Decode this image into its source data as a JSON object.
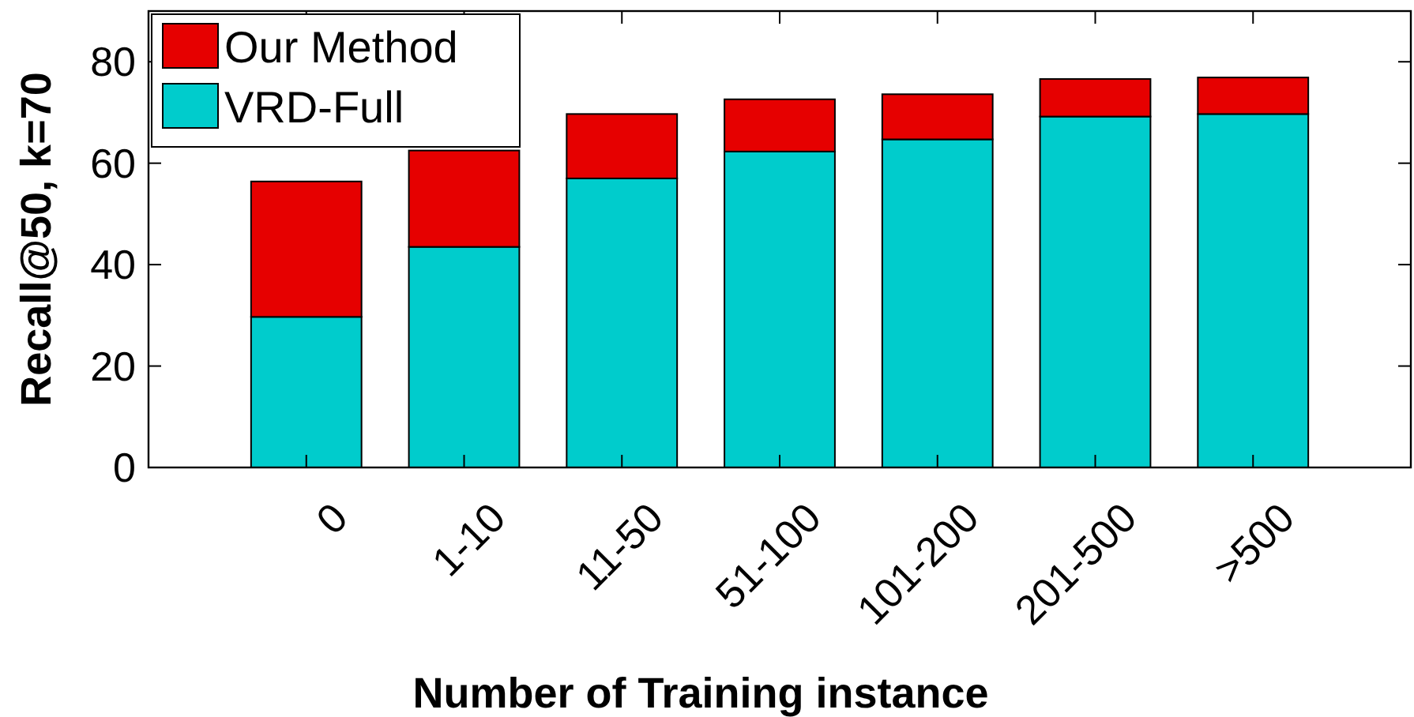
{
  "chart_data": {
    "type": "bar",
    "stacked": true,
    "xlabel": "Number of Training instance",
    "ylabel": "Recall@50, k=70",
    "categories": [
      "0",
      "1-10",
      "11-50",
      "51-100",
      "101-200",
      "201-500",
      ">500"
    ],
    "series": [
      {
        "name": "VRD-Full",
        "color": "#00cccc",
        "values": [
          29.7,
          43.5,
          57.0,
          62.3,
          64.7,
          69.2,
          69.7
        ]
      },
      {
        "name": "Our Method",
        "color": "#e60000",
        "values": [
          26.7,
          19.0,
          12.7,
          10.3,
          8.9,
          7.4,
          7.2
        ]
      }
    ],
    "ylim": [
      0,
      90
    ],
    "yticks": [
      0,
      20,
      40,
      60,
      80
    ],
    "legend": "top left",
    "grid": false
  }
}
